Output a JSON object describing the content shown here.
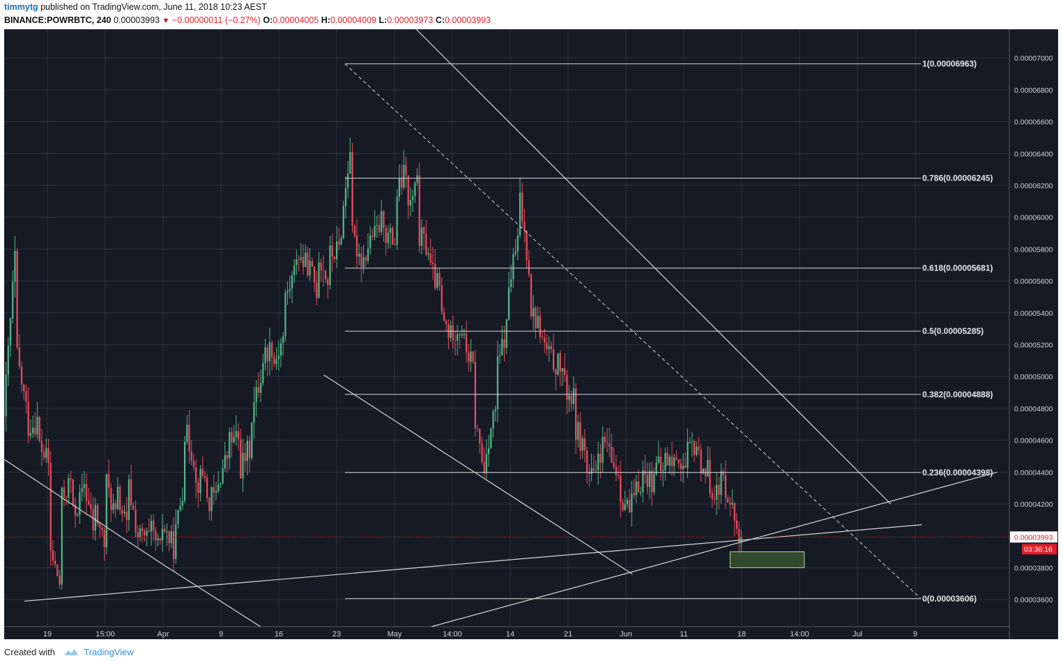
{
  "header": {
    "author": "timmytg",
    "published": " published on TradingView.com, June 11, 2018 10:23 AEST",
    "symbol": "BINANCE:POWRBTC, 240",
    "last": "0.00003993",
    "change": "−0.00000011 (−0.27%)",
    "o_label": "O:",
    "o_value": "0.00004005",
    "h_label": "H:",
    "h_value": "0.00004009",
    "l_label": "L:",
    "l_value": "0.00003973",
    "c_label": "C:",
    "c_value": "0.00003993"
  },
  "footer": {
    "created_with": "Created with",
    "brand": "TradingView"
  },
  "colors": {
    "background": "#161a25",
    "grid": "#2a2f3d",
    "up": "#53b987",
    "down": "#eb4d5c",
    "lines": "#d8d8d8",
    "price_line": "#e0202a",
    "box_fill": "#3c5a2e",
    "box_stroke": "#b8d89a"
  },
  "chart_data": {
    "type": "candlestick",
    "x_axis_labels": [
      "19",
      "15:00",
      "Apr",
      "9",
      "16",
      "23",
      "May",
      "14:00",
      "14",
      "21",
      "Jun",
      "11",
      "18",
      "14:00",
      "Jul",
      "9"
    ],
    "y_axis_labels": [
      "0.00007000",
      "0.00006800",
      "0.00006600",
      "0.00006400",
      "0.00006200",
      "0.00006000",
      "0.00005800",
      "0.00005600",
      "0.00005400",
      "0.00005200",
      "0.00005000",
      "0.00004800",
      "0.00004600",
      "0.00004400",
      "0.00004200",
      "0.00003800",
      "0.00003600"
    ],
    "ylim": [
      3.43e-05,
      7.18e-05
    ],
    "fib_levels": [
      {
        "label": "1(0.00006963)",
        "value": 6.963e-05
      },
      {
        "label": "0.786(0.00006245)",
        "value": 6.245e-05
      },
      {
        "label": "0.618(0.00005681)",
        "value": 5.681e-05
      },
      {
        "label": "0.5(0.00005285)",
        "value": 5.285e-05
      },
      {
        "label": "0.382(0.00004888)",
        "value": 4.888e-05
      },
      {
        "label": "0.236(0.00004398)",
        "value": 4.398e-05
      },
      {
        "label": "0(0.00003606)",
        "value": 3.606e-05
      }
    ],
    "current_price": {
      "label": "0.00003993",
      "value": 3.993e-05
    },
    "countdown": "03:36:16",
    "price_path": [
      [
        4.75e-05,
        5.75e-05
      ],
      [
        5.2e-05,
        4.8e-05
      ],
      [
        4.68e-05,
        4.72e-05
      ],
      [
        4.6e-05,
        4.45e-05
      ],
      [
        3.95e-05,
        3.7e-05
      ],
      [
        4.2e-05,
        4.35e-05
      ],
      [
        4.1e-05,
        4.25e-05
      ],
      [
        4.4e-05,
        4.05e-05
      ],
      [
        4.2e-05,
        3.95e-05
      ],
      [
        4.38e-05,
        4.12e-05
      ],
      [
        4.3e-05,
        4.05e-05
      ],
      [
        4.38e-05,
        4e-05
      ],
      [
        4e-05,
        3.98e-05
      ],
      [
        4.05e-05,
        3.9e-05
      ],
      [
        4.1e-05,
        3.95e-05
      ],
      [
        3.84e-05,
        4.3e-05
      ],
      [
        4.7e-05,
        4.5e-05
      ],
      [
        4.3e-05,
        4.4e-05
      ],
      [
        4.2e-05,
        4.25e-05
      ],
      [
        4.3e-05,
        4.5e-05
      ],
      [
        4.6e-05,
        4.6e-05
      ],
      [
        4.4e-05,
        4.55e-05
      ],
      [
        4.7e-05,
        5e-05
      ],
      [
        5.1e-05,
        5.2e-05
      ],
      [
        5.05e-05,
        5.25e-05
      ],
      [
        5.45e-05,
        5.65e-05
      ],
      [
        5.8e-05,
        5.7e-05
      ],
      [
        5.75e-05,
        5.55e-05
      ],
      [
        5.8e-05,
        5.6e-05
      ],
      [
        5.75e-05,
        5.8e-05
      ],
      [
        5.8e-05,
        6.45e-05
      ],
      [
        5.9e-05,
        5.75e-05
      ],
      [
        5.7e-05,
        5.9e-05
      ],
      [
        5.85e-05,
        6e-05
      ],
      [
        5.9e-05,
        5.85e-05
      ],
      [
        6.1e-05,
        6.3e-05
      ],
      [
        6e-05,
        6.2e-05
      ],
      [
        5.9e-05,
        5.8e-05
      ],
      [
        5.7e-05,
        5.55e-05
      ],
      [
        5.4e-05,
        5.25e-05
      ],
      [
        5.3e-05,
        5.3e-05
      ],
      [
        5.25e-05,
        5.05e-05
      ],
      [
        4.8e-05,
        4.4e-05
      ],
      [
        4.5e-05,
        4.8e-05
      ],
      [
        5e-05,
        5.3e-05
      ],
      [
        5.5e-05,
        5.85e-05
      ],
      [
        6.2e-05,
        5.7e-05
      ],
      [
        5.45e-05,
        5.3e-05
      ],
      [
        5.25e-05,
        5.1e-05
      ],
      [
        5.1e-05,
        5.05e-05
      ],
      [
        4.95e-05,
        4.85e-05
      ],
      [
        4.7e-05,
        4.55e-05
      ],
      [
        4.4e-05,
        4.35e-05
      ],
      [
        4.5e-05,
        4.58e-05
      ],
      [
        4.5e-05,
        4.4e-05
      ],
      [
        4.3e-05,
        4.15e-05
      ],
      [
        4.15e-05,
        4.35e-05
      ],
      [
        4.4e-05,
        4.35e-05
      ],
      [
        4.45e-05,
        4.4e-05
      ],
      [
        4.5e-05,
        4.45e-05
      ],
      [
        4.55e-05,
        4.4e-05
      ],
      [
        4.5e-05,
        4.58e-05
      ],
      [
        4.5e-05,
        4.4e-05
      ],
      [
        4.35e-05,
        4.25e-05
      ],
      [
        4.4e-05,
        4.25e-05
      ],
      [
        4.2e-05,
        3.99e-05
      ]
    ],
    "trend_lines": [
      {
        "from": [
          0.0,
          4.48e-05
        ],
        "to": [
          0.158,
          3.82e-05
        ]
      },
      {
        "from": [
          0.158,
          3.82e-05
        ],
        "to": [
          0.255,
          3.43e-05
        ]
      },
      {
        "from": [
          0.02,
          3.59e-05
        ],
        "to": [
          0.913,
          4.07e-05
        ]
      },
      {
        "from": [
          0.318,
          5.01e-05
        ],
        "to": [
          0.625,
          3.76e-05
        ]
      },
      {
        "from": [
          0.425,
          3.43e-05
        ],
        "to": [
          0.988,
          4.4e-05
        ]
      },
      {
        "from": [
          0.41,
          7.18e-05
        ],
        "to": [
          0.882,
          4.2e-05
        ]
      }
    ],
    "fib_trend": {
      "from": [
        0.339,
        6.963e-05
      ],
      "to": [
        0.912,
        3.606e-05
      ]
    },
    "fib_x_start": 0.339,
    "fib_x_end": 0.912,
    "box": {
      "x0": 0.7222,
      "x1": 0.796,
      "y_top": 3.9e-05,
      "y_bottom": 3.8e-05
    }
  }
}
